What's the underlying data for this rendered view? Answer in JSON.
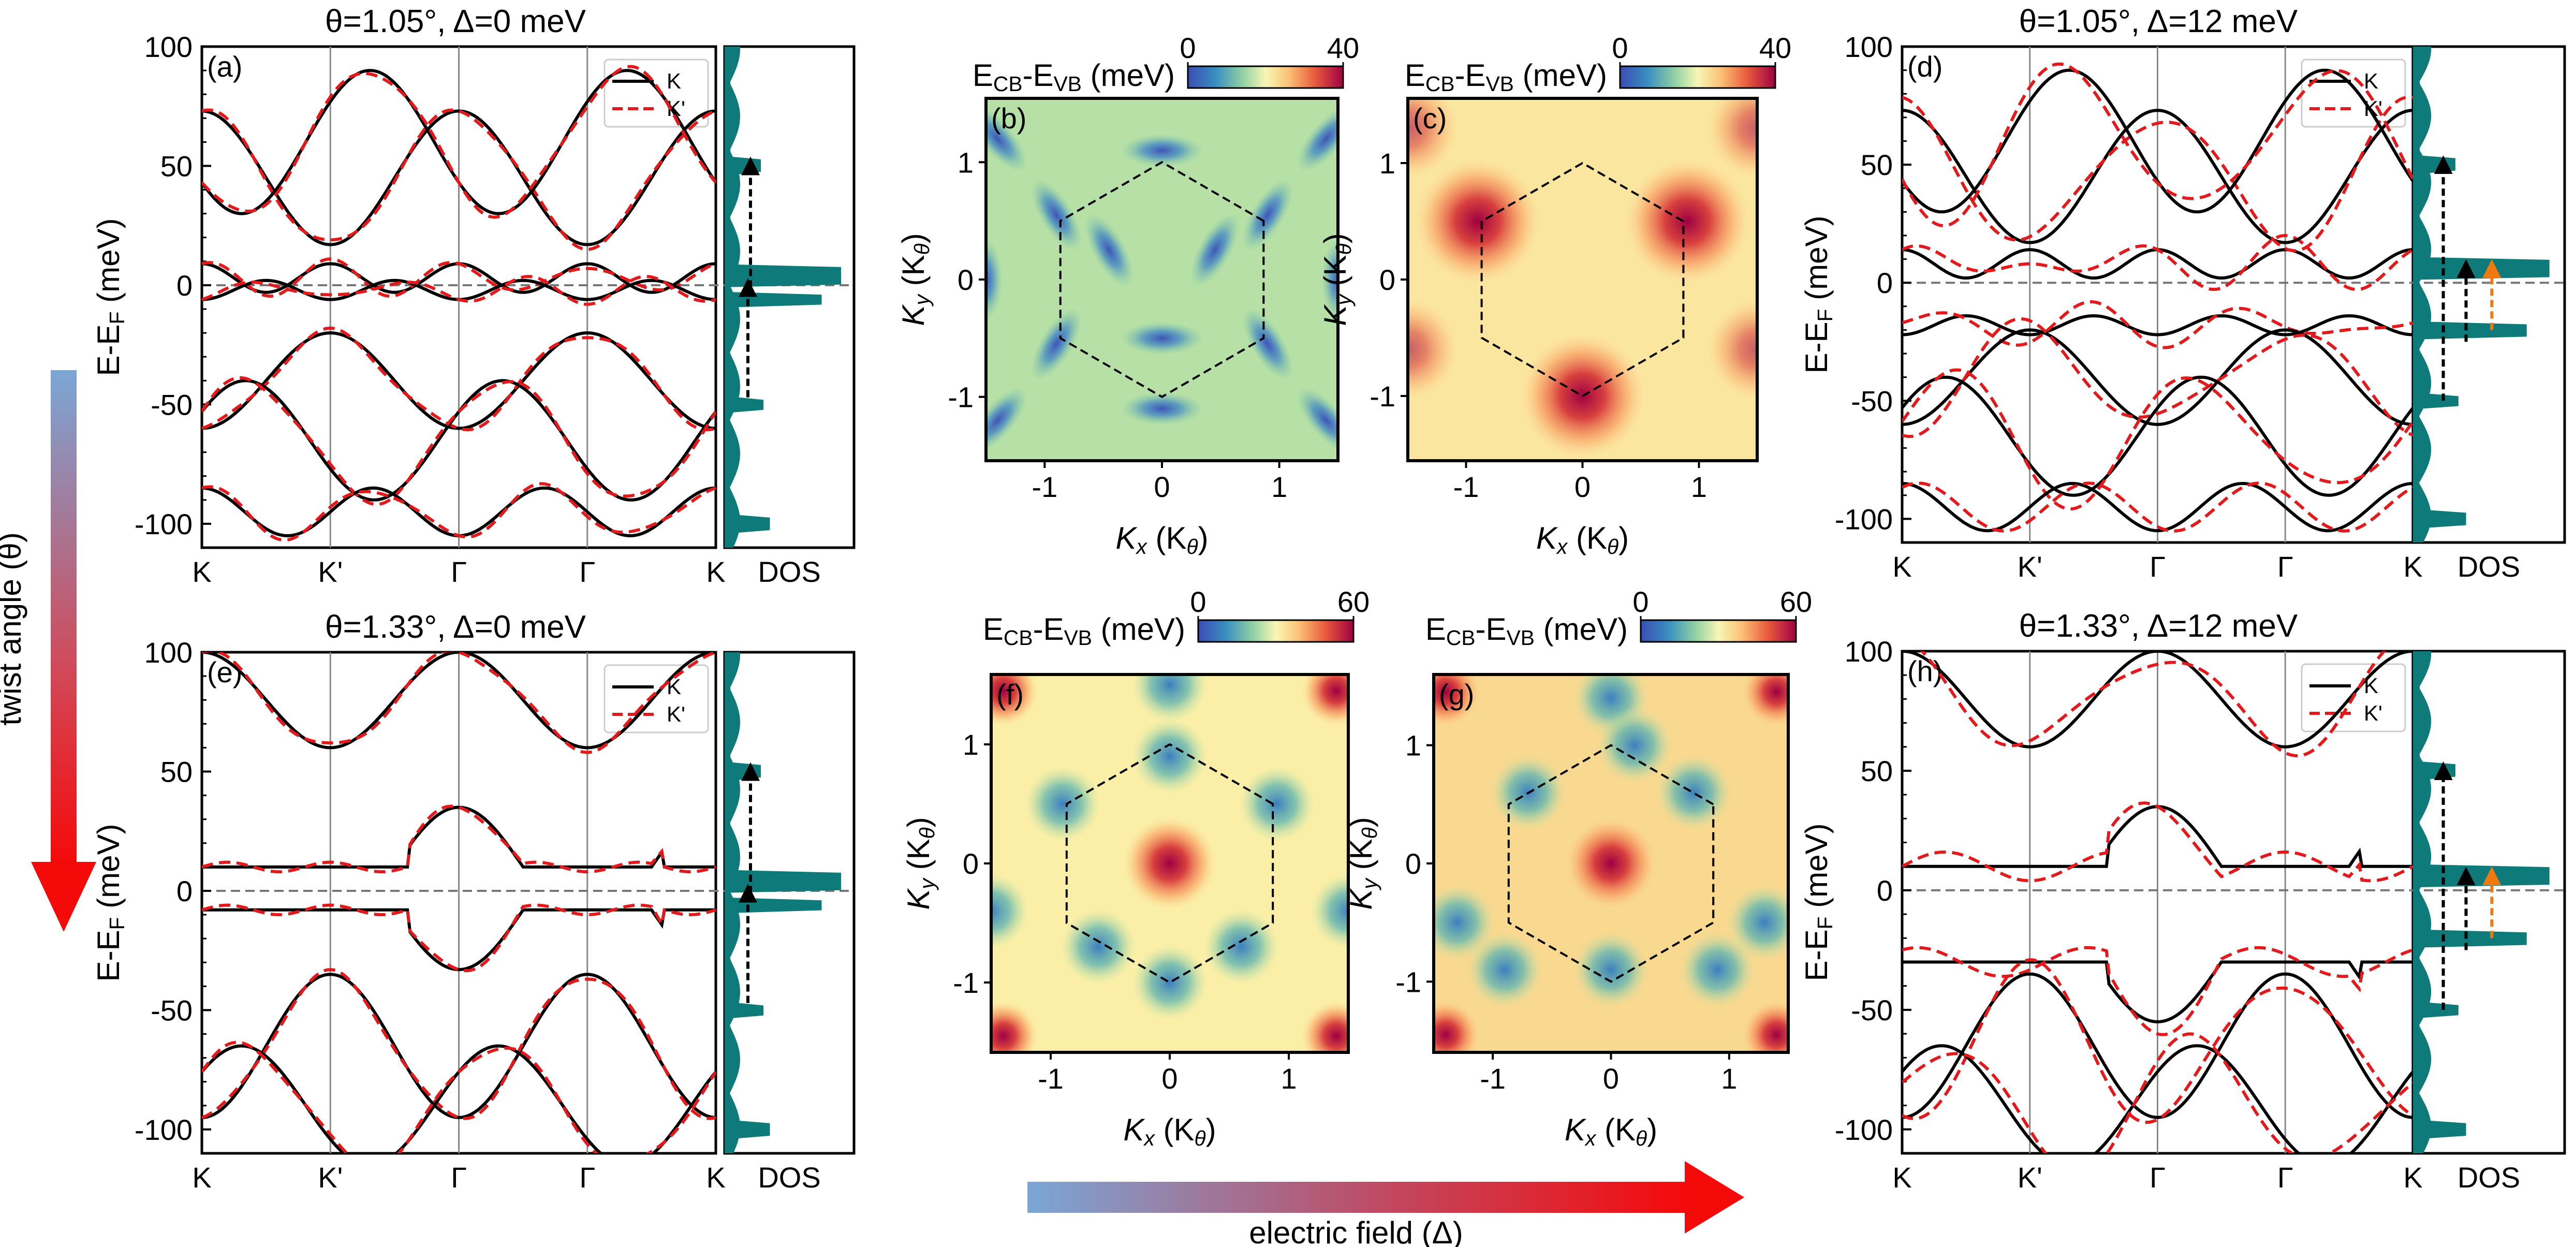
{
  "panels": {
    "a": {
      "label": "(a)",
      "title": "θ=1.05°,  Δ=0 meV"
    },
    "b": {
      "label": "(b)"
    },
    "c": {
      "label": "(c)"
    },
    "d": {
      "label": "(d)",
      "title": "θ=1.05°,  Δ=12 meV"
    },
    "e": {
      "label": "(e)",
      "title": "θ=1.33°,  Δ=0 meV"
    },
    "f": {
      "label": "(f)"
    },
    "g": {
      "label": "(g)"
    },
    "h": {
      "label": "(h)",
      "title": "θ=1.33°,  Δ=12 meV"
    }
  },
  "band": {
    "ylabel": "E-E",
    "ylabel_sub": "F",
    "ylabel_unit": " (meV)",
    "yticks": [
      "100",
      "50",
      "0",
      "-50",
      "-100"
    ],
    "xticks": [
      "K",
      "K'",
      "Γ",
      "Γ",
      "K"
    ],
    "dos_label": "DOS",
    "legend": [
      "K",
      "K'"
    ]
  },
  "map": {
    "cb_label": "E",
    "cb_sub1": "CB",
    "cb_dash": "-E",
    "cb_sub2": "VB",
    "cb_unit": " (meV)",
    "cb_top": {
      "min": "0",
      "max": "40"
    },
    "cb_bottom": {
      "min": "0",
      "max": "60"
    },
    "xlabel": "K",
    "xlabel_sub1": "x",
    "xlabel_mid": " (K",
    "xlabel_sub2": "θ",
    "xlabel_end": ")",
    "ylabel": "K",
    "ylabel_sub1": "y",
    "ticks": [
      "-1",
      "0",
      "1"
    ]
  },
  "arrows": {
    "twist": "twist angle (θ)",
    "field": "electric field (Δ)"
  },
  "colors": {
    "K": "#000000",
    "Kprime": "#e31a1c",
    "dos": "#0e7a7a",
    "transition": "#000000",
    "transition_alt": "#f07a10",
    "hexagon": "#000000",
    "arrow_start": "#7aa7d6",
    "arrow_end": "#f50a0a"
  }
}
